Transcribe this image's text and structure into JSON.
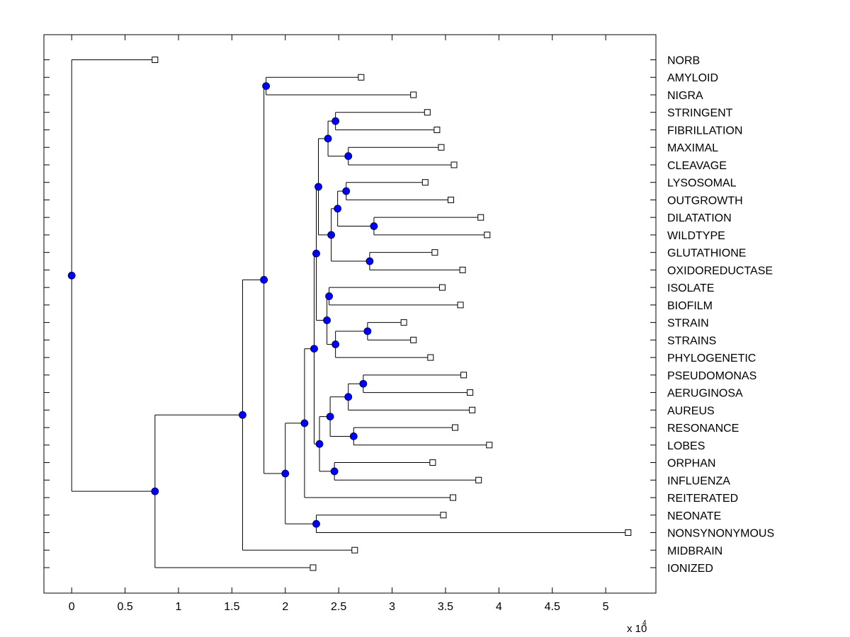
{
  "chart_data": {
    "type": "dendrogram",
    "title": "",
    "xlabel": "",
    "ylabel": "",
    "x_multiplier_label": "x 10",
    "x_multiplier_exponent": "4",
    "xlim": [
      -0.26,
      5.47
    ],
    "x_ticks": [
      0,
      0.5,
      1,
      1.5,
      2,
      2.5,
      3,
      3.5,
      4,
      4.5,
      5
    ],
    "x_tick_labels": [
      "0",
      "0.5",
      "1",
      "1.5",
      "2",
      "2.5",
      "3",
      "3.5",
      "4",
      "4.5",
      "5"
    ],
    "grid": false,
    "node_color": "#0000ff",
    "leaf_marker": "open-square",
    "leaves": [
      "NORB",
      "AMYLOID",
      "NIGRA",
      "STRINGENT",
      "FIBRILLATION",
      "MAXIMAL",
      "CLEAVAGE",
      "LYSOSOMAL",
      "OUTGROWTH",
      "DILATATION",
      "WILDTYPE",
      "GLUTATHIONE",
      "OXIDOREDUCTASE",
      "ISOLATE",
      "BIOFILM",
      "STRAIN",
      "STRAINS",
      "PHYLOGENETIC",
      "PSEUDOMONAS",
      "AERUGINOSA",
      "AUREUS",
      "RESONANCE",
      "LOBES",
      "ORPHAN",
      "INFLUENZA",
      "REITERATED",
      "NEONATE",
      "NONSYNONYMOUS",
      "MIDBRAIN",
      "IONIZED"
    ],
    "tree": {
      "x": 0,
      "children": [
        {
          "leaf": "NORB",
          "x": 0.78
        },
        {
          "x": 0.78,
          "children": [
            {
              "x": 1.6,
              "children": [
                {
                  "x": 1.8,
                  "children": [
                    {
                      "x": 1.82,
                      "children": [
                        {
                          "leaf": "AMYLOID",
                          "x": 2.71
                        },
                        {
                          "leaf": "NIGRA",
                          "x": 3.2
                        }
                      ]
                    },
                    {
                      "x": 2.0,
                      "children": [
                        {
                          "x": 2.18,
                          "children": [
                            {
                              "x": 2.27,
                              "children": [
                                {
                                  "x": 2.29,
                                  "children": [
                                    {
                                      "x": 2.31,
                                      "children": [
                                        {
                                          "x": 2.4,
                                          "children": [
                                            {
                                              "x": 2.47,
                                              "children": [
                                                {
                                                  "leaf": "STRINGENT",
                                                  "x": 3.33
                                                },
                                                {
                                                  "leaf": "FIBRILLATION",
                                                  "x": 3.42
                                                }
                                              ]
                                            },
                                            {
                                              "x": 2.59,
                                              "children": [
                                                {
                                                  "leaf": "MAXIMAL",
                                                  "x": 3.46
                                                },
                                                {
                                                  "leaf": "CLEAVAGE",
                                                  "x": 3.58
                                                }
                                              ]
                                            }
                                          ]
                                        },
                                        {
                                          "x": 2.43,
                                          "children": [
                                            {
                                              "x": 2.49,
                                              "children": [
                                                {
                                                  "x": 2.57,
                                                  "children": [
                                                    {
                                                      "leaf": "LYSOSOMAL",
                                                      "x": 3.31
                                                    },
                                                    {
                                                      "leaf": "OUTGROWTH",
                                                      "x": 3.55
                                                    }
                                                  ]
                                                },
                                                {
                                                  "x": 2.83,
                                                  "children": [
                                                    {
                                                      "leaf": "DILATATION",
                                                      "x": 3.83
                                                    },
                                                    {
                                                      "leaf": "WILDTYPE",
                                                      "x": 3.89
                                                    }
                                                  ]
                                                }
                                              ]
                                            },
                                            {
                                              "x": 2.79,
                                              "children": [
                                                {
                                                  "leaf": "GLUTATHIONE",
                                                  "x": 3.4
                                                },
                                                {
                                                  "leaf": "OXIDOREDUCTASE",
                                                  "x": 3.66
                                                }
                                              ]
                                            }
                                          ]
                                        }
                                      ]
                                    },
                                    {
                                      "x": 2.39,
                                      "children": [
                                        {
                                          "x": 2.41,
                                          "children": [
                                            {
                                              "leaf": "ISOLATE",
                                              "x": 3.47
                                            },
                                            {
                                              "leaf": "BIOFILM",
                                              "x": 3.64
                                            }
                                          ]
                                        },
                                        {
                                          "x": 2.47,
                                          "children": [
                                            {
                                              "x": 2.77,
                                              "children": [
                                                {
                                                  "leaf": "STRAIN",
                                                  "x": 3.11
                                                },
                                                {
                                                  "leaf": "STRAINS",
                                                  "x": 3.2
                                                }
                                              ]
                                            },
                                            {
                                              "leaf": "PHYLOGENETIC",
                                              "x": 3.36
                                            }
                                          ]
                                        }
                                      ]
                                    }
                                  ]
                                },
                                {
                                  "x": 2.32,
                                  "children": [
                                    {
                                      "x": 2.42,
                                      "children": [
                                        {
                                          "x": 2.59,
                                          "children": [
                                            {
                                              "x": 2.73,
                                              "children": [
                                                {
                                                  "leaf": "PSEUDOMONAS",
                                                  "x": 3.67
                                                },
                                                {
                                                  "leaf": "AERUGINOSA",
                                                  "x": 3.73
                                                }
                                              ]
                                            },
                                            {
                                              "leaf": "AUREUS",
                                              "x": 3.75
                                            }
                                          ]
                                        },
                                        {
                                          "x": 2.64,
                                          "children": [
                                            {
                                              "leaf": "RESONANCE",
                                              "x": 3.59
                                            },
                                            {
                                              "leaf": "LOBES",
                                              "x": 3.91
                                            }
                                          ]
                                        }
                                      ]
                                    },
                                    {
                                      "x": 2.46,
                                      "children": [
                                        {
                                          "leaf": "ORPHAN",
                                          "x": 3.38
                                        },
                                        {
                                          "leaf": "INFLUENZA",
                                          "x": 3.81
                                        }
                                      ]
                                    }
                                  ]
                                }
                              ]
                            },
                            {
                              "leaf": "REITERATED",
                              "x": 3.57
                            }
                          ]
                        },
                        {
                          "x": 2.29,
                          "children": [
                            {
                              "leaf": "NEONATE",
                              "x": 3.48
                            },
                            {
                              "leaf": "NONSYNONYMOUS",
                              "x": 5.21
                            }
                          ]
                        }
                      ]
                    }
                  ]
                },
                {
                  "leaf": "MIDBRAIN",
                  "x": 2.65
                }
              ]
            },
            {
              "leaf": "IONIZED",
              "x": 2.26
            }
          ]
        }
      ]
    }
  }
}
